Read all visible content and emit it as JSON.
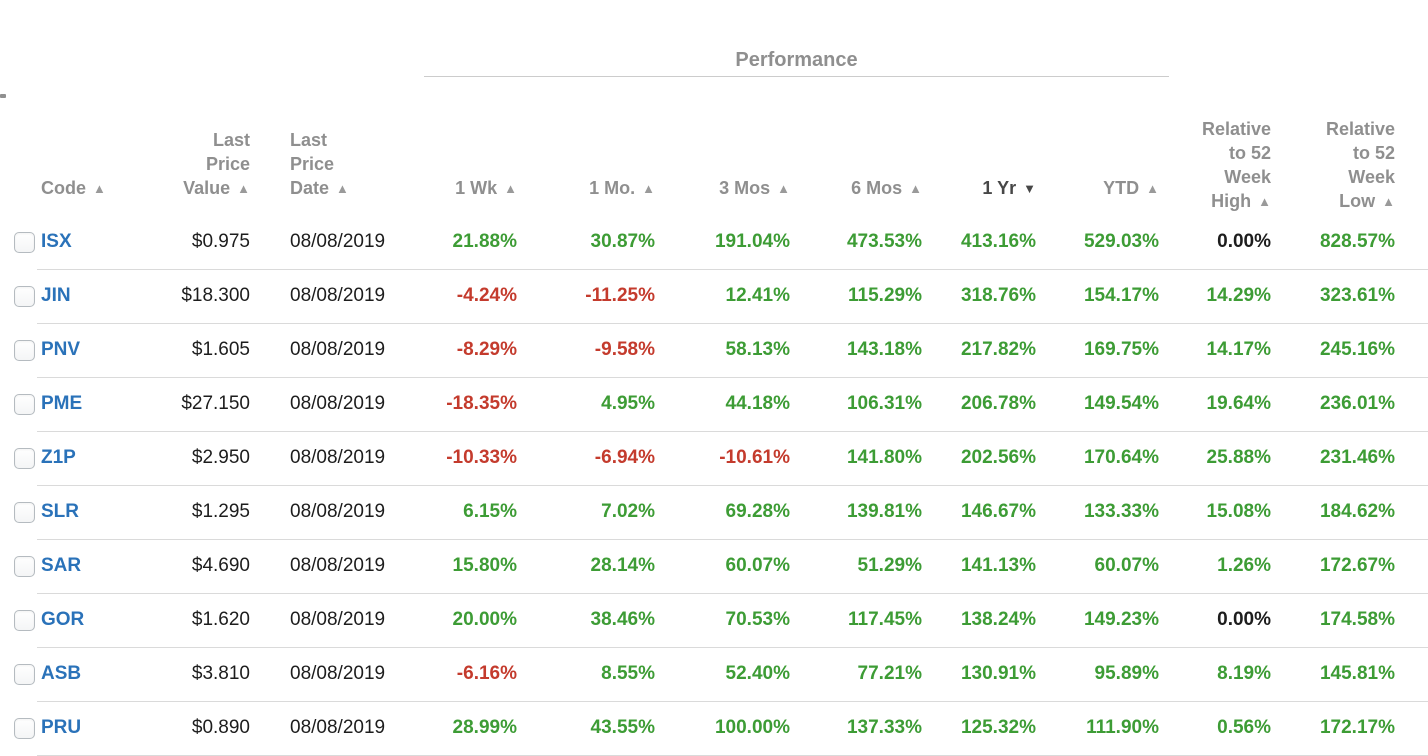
{
  "colors": {
    "green": "#3d9c35",
    "red": "#c43b2d",
    "code_blue": "#2a72b9",
    "header_gray": "#8f8f8f",
    "active_sort": "#474747"
  },
  "icons": {
    "sort_asc": "▲",
    "sort_desc": "▼"
  },
  "header": {
    "performance_group_label": "Performance",
    "columns": [
      {
        "id": "code",
        "label": "Code",
        "sort": "asc"
      },
      {
        "id": "last_price_value",
        "label": "Last\nPrice\nValue",
        "sort": "asc"
      },
      {
        "id": "last_price_date",
        "label": "Last\nPrice\nDate",
        "sort": "asc"
      },
      {
        "id": "wk1",
        "label": "1 Wk",
        "sort": "asc"
      },
      {
        "id": "mo1",
        "label": "1 Mo.",
        "sort": "asc"
      },
      {
        "id": "mos3",
        "label": "3 Mos",
        "sort": "asc"
      },
      {
        "id": "mos6",
        "label": "6 Mos",
        "sort": "asc"
      },
      {
        "id": "yr1",
        "label": "1 Yr",
        "sort": "desc",
        "active": true
      },
      {
        "id": "ytd",
        "label": "YTD",
        "sort": "asc"
      },
      {
        "id": "high52",
        "label": "Relative\nto 52\nWeek\nHigh",
        "sort": "asc"
      },
      {
        "id": "low52",
        "label": "Relative\nto 52\nWeek\nLow",
        "sort": "asc"
      }
    ]
  },
  "rows": [
    {
      "code": "ISX",
      "last_price_value": "$0.975",
      "last_price_date": "08/08/2019",
      "wk1": "21.88%",
      "mo1": "30.87%",
      "mos3": "191.04%",
      "mos6": "473.53%",
      "yr1": "413.16%",
      "ytd": "529.03%",
      "high52": "0.00%",
      "low52": "828.57%"
    },
    {
      "code": "JIN",
      "last_price_value": "$18.300",
      "last_price_date": "08/08/2019",
      "wk1": "-4.24%",
      "mo1": "-11.25%",
      "mos3": "12.41%",
      "mos6": "115.29%",
      "yr1": "318.76%",
      "ytd": "154.17%",
      "high52": "14.29%",
      "low52": "323.61%"
    },
    {
      "code": "PNV",
      "last_price_value": "$1.605",
      "last_price_date": "08/08/2019",
      "wk1": "-8.29%",
      "mo1": "-9.58%",
      "mos3": "58.13%",
      "mos6": "143.18%",
      "yr1": "217.82%",
      "ytd": "169.75%",
      "high52": "14.17%",
      "low52": "245.16%"
    },
    {
      "code": "PME",
      "last_price_value": "$27.150",
      "last_price_date": "08/08/2019",
      "wk1": "-18.35%",
      "mo1": "4.95%",
      "mos3": "44.18%",
      "mos6": "106.31%",
      "yr1": "206.78%",
      "ytd": "149.54%",
      "high52": "19.64%",
      "low52": "236.01%"
    },
    {
      "code": "Z1P",
      "last_price_value": "$2.950",
      "last_price_date": "08/08/2019",
      "wk1": "-10.33%",
      "mo1": "-6.94%",
      "mos3": "-10.61%",
      "mos6": "141.80%",
      "yr1": "202.56%",
      "ytd": "170.64%",
      "high52": "25.88%",
      "low52": "231.46%"
    },
    {
      "code": "SLR",
      "last_price_value": "$1.295",
      "last_price_date": "08/08/2019",
      "wk1": "6.15%",
      "mo1": "7.02%",
      "mos3": "69.28%",
      "mos6": "139.81%",
      "yr1": "146.67%",
      "ytd": "133.33%",
      "high52": "15.08%",
      "low52": "184.62%"
    },
    {
      "code": "SAR",
      "last_price_value": "$4.690",
      "last_price_date": "08/08/2019",
      "wk1": "15.80%",
      "mo1": "28.14%",
      "mos3": "60.07%",
      "mos6": "51.29%",
      "yr1": "141.13%",
      "ytd": "60.07%",
      "high52": "1.26%",
      "low52": "172.67%"
    },
    {
      "code": "GOR",
      "last_price_value": "$1.620",
      "last_price_date": "08/08/2019",
      "wk1": "20.00%",
      "mo1": "38.46%",
      "mos3": "70.53%",
      "mos6": "117.45%",
      "yr1": "138.24%",
      "ytd": "149.23%",
      "high52": "0.00%",
      "low52": "174.58%"
    },
    {
      "code": "ASB",
      "last_price_value": "$3.810",
      "last_price_date": "08/08/2019",
      "wk1": "-6.16%",
      "mo1": "8.55%",
      "mos3": "52.40%",
      "mos6": "77.21%",
      "yr1": "130.91%",
      "ytd": "95.89%",
      "high52": "8.19%",
      "low52": "145.81%"
    },
    {
      "code": "PRU",
      "last_price_value": "$0.890",
      "last_price_date": "08/08/2019",
      "wk1": "28.99%",
      "mo1": "43.55%",
      "mos3": "100.00%",
      "mos6": "137.33%",
      "yr1": "125.32%",
      "ytd": "111.90%",
      "high52": "0.56%",
      "low52": "172.17%"
    }
  ]
}
